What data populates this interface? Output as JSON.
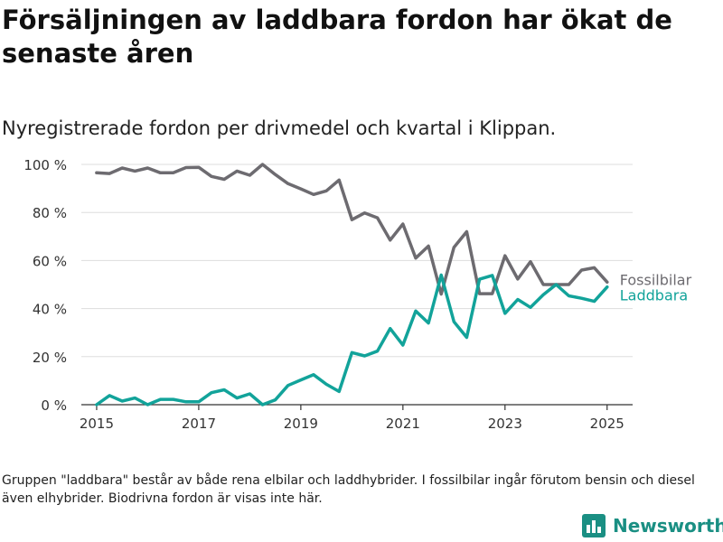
{
  "title": "Försäljningen av laddbara fordon har ökat de senaste åren",
  "subtitle": "Nyregistrerade fordon per drivmedel och kvartal i Klippan.",
  "footnote": "Gruppen \"laddbara\" består av både rena elbilar och laddhybrider. I fossilbilar ingår förutom bensin och diesel även elhybrider. Biodrivna fordon är visas inte här.",
  "brand": {
    "name": "Newsworthy",
    "icon": "newsworthy-logo-icon"
  },
  "colors": {
    "fossil": "#6d6b70",
    "laddbara": "#12a39a",
    "grid": "#dddddd",
    "axis": "#333333"
  },
  "chart_data": {
    "type": "line",
    "xlim": [
      2014.7,
      2025.5
    ],
    "ylim": [
      0,
      100
    ],
    "x_ticks": [
      2015,
      2017,
      2019,
      2021,
      2023,
      2025
    ],
    "y_ticks": [
      0,
      20,
      40,
      60,
      80,
      100
    ],
    "y_tick_labels": [
      "0 %",
      "20 %",
      "40 %",
      "60 %",
      "80 %",
      "100 %"
    ],
    "grid": true,
    "legend": "end-of-line labels",
    "x": [
      2015.0,
      2015.25,
      2015.5,
      2015.75,
      2016.0,
      2016.25,
      2016.5,
      2016.75,
      2017.0,
      2017.25,
      2017.5,
      2017.75,
      2018.0,
      2018.25,
      2018.5,
      2018.75,
      2019.0,
      2019.25,
      2019.5,
      2019.75,
      2020.0,
      2020.25,
      2020.5,
      2020.75,
      2021.0,
      2021.25,
      2021.5,
      2021.75,
      2022.0,
      2022.25,
      2022.5,
      2022.75,
      2023.0,
      2023.25,
      2023.5,
      2023.75,
      2024.0,
      2024.25,
      2024.5,
      2024.75,
      2025.0
    ],
    "series": [
      {
        "name": "Fossilbilar",
        "color_key": "fossil",
        "values": [
          96.5,
          96.2,
          98.5,
          97.2,
          98.5,
          96.5,
          96.5,
          98.7,
          98.8,
          95.0,
          93.8,
          97.2,
          95.5,
          100.0,
          95.8,
          92.0,
          89.8,
          87.5,
          89.0,
          93.5,
          77.0,
          79.8,
          77.8,
          68.5,
          75.2,
          61.0,
          66.0,
          46.0,
          65.5,
          72.0,
          46.2,
          46.2,
          62.0,
          52.3,
          59.5,
          50.0,
          50.0,
          50.0,
          56.0,
          57.0,
          51.0
        ]
      },
      {
        "name": "Laddbara",
        "color_key": "laddbara",
        "values": [
          0.0,
          3.8,
          1.5,
          2.8,
          0.0,
          2.2,
          2.2,
          1.2,
          1.2,
          5.0,
          6.2,
          2.8,
          4.5,
          0.0,
          2.0,
          8.0,
          10.3,
          12.5,
          8.5,
          5.5,
          21.7,
          20.3,
          22.3,
          31.7,
          24.8,
          39.0,
          34.0,
          54.0,
          34.5,
          28.0,
          52.2,
          53.8,
          38.0,
          43.8,
          40.5,
          45.8,
          50.0,
          45.3,
          44.3,
          43.0,
          49.0
        ]
      }
    ]
  }
}
